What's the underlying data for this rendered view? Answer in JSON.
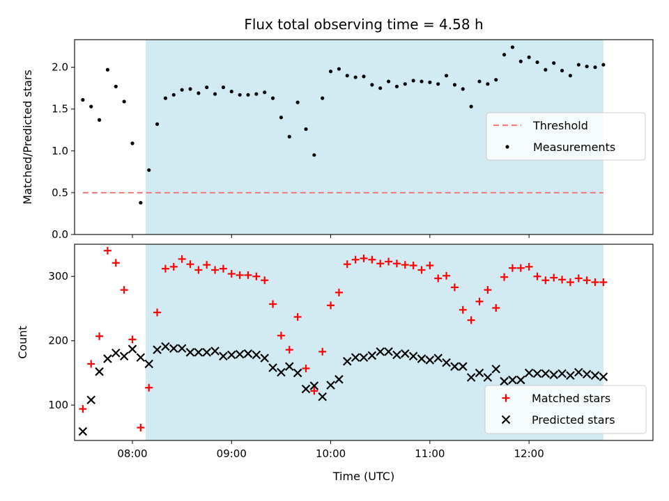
{
  "title": "Flux total observing time = 4.58 h",
  "colors": {
    "shade": "#add8e6",
    "threshold": "#f08080",
    "measurement": "#000000",
    "matched": "#ff0000",
    "predicted": "#000000"
  },
  "chart_data": [
    {
      "type": "scatter",
      "panel": "top",
      "title": "Flux total observing time = 4.58 h",
      "ylabel": "Matched/Predicted stars",
      "xlabel": "",
      "xlim": [
        "07:25",
        "13:15"
      ],
      "ylim": [
        0.0,
        2.33
      ],
      "yticks": [
        "0.0",
        "0.5",
        "1.0",
        "1.5",
        "2.0"
      ],
      "grid": false,
      "legend": "center-right",
      "shaded_interval": [
        "08:08",
        "12:45"
      ],
      "series": [
        {
          "name": "Threshold",
          "style": "dashed-line",
          "x": [
            "07:30",
            "12:45"
          ],
          "y": [
            0.5,
            0.5
          ]
        },
        {
          "name": "Measurements",
          "style": "dots",
          "x": [
            "07:30",
            "07:35",
            "07:40",
            "07:45",
            "07:50",
            "07:55",
            "08:00",
            "08:05",
            "08:10",
            "08:15",
            "08:20",
            "08:25",
            "08:30",
            "08:35",
            "08:40",
            "08:45",
            "08:50",
            "08:55",
            "09:00",
            "09:05",
            "09:10",
            "09:15",
            "09:20",
            "09:25",
            "09:30",
            "09:35",
            "09:40",
            "09:45",
            "09:50",
            "09:55",
            "10:00",
            "10:05",
            "10:10",
            "10:15",
            "10:20",
            "10:25",
            "10:30",
            "10:35",
            "10:40",
            "10:45",
            "10:50",
            "10:55",
            "11:00",
            "11:05",
            "11:10",
            "11:15",
            "11:20",
            "11:25",
            "11:30",
            "11:35",
            "11:40",
            "11:45",
            "11:50",
            "11:55",
            "12:00",
            "12:05",
            "12:10",
            "12:15",
            "12:20",
            "12:25",
            "12:30",
            "12:35",
            "12:40",
            "12:45"
          ],
          "y": [
            1.61,
            1.53,
            1.37,
            1.97,
            1.77,
            1.59,
            1.09,
            0.38,
            0.77,
            1.32,
            1.63,
            1.67,
            1.73,
            1.74,
            1.69,
            1.76,
            1.68,
            1.76,
            1.71,
            1.67,
            1.67,
            1.68,
            1.7,
            1.63,
            1.4,
            1.17,
            1.58,
            1.26,
            0.95,
            1.63,
            1.95,
            1.98,
            1.9,
            1.88,
            1.89,
            1.79,
            1.75,
            1.83,
            1.77,
            1.8,
            1.84,
            1.83,
            1.82,
            1.8,
            1.9,
            1.79,
            1.74,
            1.53,
            1.83,
            1.8,
            1.85,
            2.15,
            2.24,
            2.07,
            2.12,
            2.06,
            1.97,
            2.05,
            1.96,
            1.9,
            2.03,
            2.01,
            2.0,
            2.03
          ]
        }
      ]
    },
    {
      "type": "scatter",
      "panel": "bottom",
      "xlabel": "Time (UTC)",
      "ylabel": "Count",
      "xlim": [
        "07:25",
        "13:15"
      ],
      "ylim": [
        45,
        350
      ],
      "yticks": [
        "100",
        "200",
        "300"
      ],
      "xticks": [
        "08:00",
        "09:00",
        "10:00",
        "11:00",
        "12:00"
      ],
      "grid": false,
      "legend": "lower-right",
      "shaded_interval": [
        "08:08",
        "12:45"
      ],
      "series": [
        {
          "name": "Matched stars",
          "marker": "plus",
          "x": [
            "07:30",
            "07:35",
            "07:40",
            "07:45",
            "07:50",
            "07:55",
            "08:00",
            "08:05",
            "08:10",
            "08:15",
            "08:20",
            "08:25",
            "08:30",
            "08:35",
            "08:40",
            "08:45",
            "08:50",
            "08:55",
            "09:00",
            "09:05",
            "09:10",
            "09:15",
            "09:20",
            "09:25",
            "09:30",
            "09:35",
            "09:40",
            "09:45",
            "09:50",
            "09:55",
            "10:00",
            "10:05",
            "10:10",
            "10:15",
            "10:20",
            "10:25",
            "10:30",
            "10:35",
            "10:40",
            "10:45",
            "10:50",
            "10:55",
            "11:00",
            "11:05",
            "11:10",
            "11:15",
            "11:20",
            "11:25",
            "11:30",
            "11:35",
            "11:40",
            "11:45",
            "11:50",
            "11:55",
            "12:00",
            "12:05",
            "12:10",
            "12:15",
            "12:20",
            "12:25",
            "12:30",
            "12:35",
            "12:40",
            "12:45"
          ],
          "y": [
            94,
            164,
            207,
            340,
            321,
            279,
            202,
            65,
            127,
            244,
            312,
            315,
            327,
            319,
            310,
            318,
            310,
            312,
            304,
            302,
            302,
            300,
            294,
            257,
            208,
            186,
            237,
            157,
            122,
            183,
            255,
            275,
            319,
            326,
            328,
            326,
            320,
            323,
            320,
            318,
            317,
            310,
            317,
            297,
            301,
            283,
            248,
            232,
            261,
            279,
            251,
            299,
            313,
            313,
            315,
            300,
            294,
            298,
            295,
            291,
            297,
            294,
            291,
            291
          ]
        },
        {
          "name": "Predicted stars",
          "marker": "x",
          "x": [
            "07:30",
            "07:35",
            "07:40",
            "07:45",
            "07:50",
            "07:55",
            "08:00",
            "08:05",
            "08:10",
            "08:15",
            "08:20",
            "08:25",
            "08:30",
            "08:35",
            "08:40",
            "08:45",
            "08:50",
            "08:55",
            "09:00",
            "09:05",
            "09:10",
            "09:15",
            "09:20",
            "09:25",
            "09:30",
            "09:35",
            "09:40",
            "09:45",
            "09:50",
            "09:55",
            "10:00",
            "10:05",
            "10:10",
            "10:15",
            "10:20",
            "10:25",
            "10:30",
            "10:35",
            "10:40",
            "10:45",
            "10:50",
            "10:55",
            "11:00",
            "11:05",
            "11:10",
            "11:15",
            "11:20",
            "11:25",
            "11:30",
            "11:35",
            "11:40",
            "11:45",
            "11:50",
            "11:55",
            "12:00",
            "12:05",
            "12:10",
            "12:15",
            "12:20",
            "12:25",
            "12:30",
            "12:35",
            "12:40",
            "12:45"
          ],
          "y": [
            59,
            108,
            152,
            172,
            181,
            176,
            187,
            174,
            164,
            186,
            191,
            188,
            188,
            182,
            182,
            182,
            184,
            176,
            178,
            179,
            180,
            178,
            173,
            158,
            151,
            160,
            150,
            125,
            130,
            113,
            131,
            140,
            168,
            174,
            174,
            177,
            183,
            183,
            178,
            180,
            176,
            172,
            170,
            173,
            166,
            160,
            160,
            143,
            150,
            143,
            156,
            137,
            139,
            139,
            150,
            149,
            149,
            147,
            149,
            146,
            151,
            148,
            146,
            144
          ]
        }
      ]
    }
  ]
}
